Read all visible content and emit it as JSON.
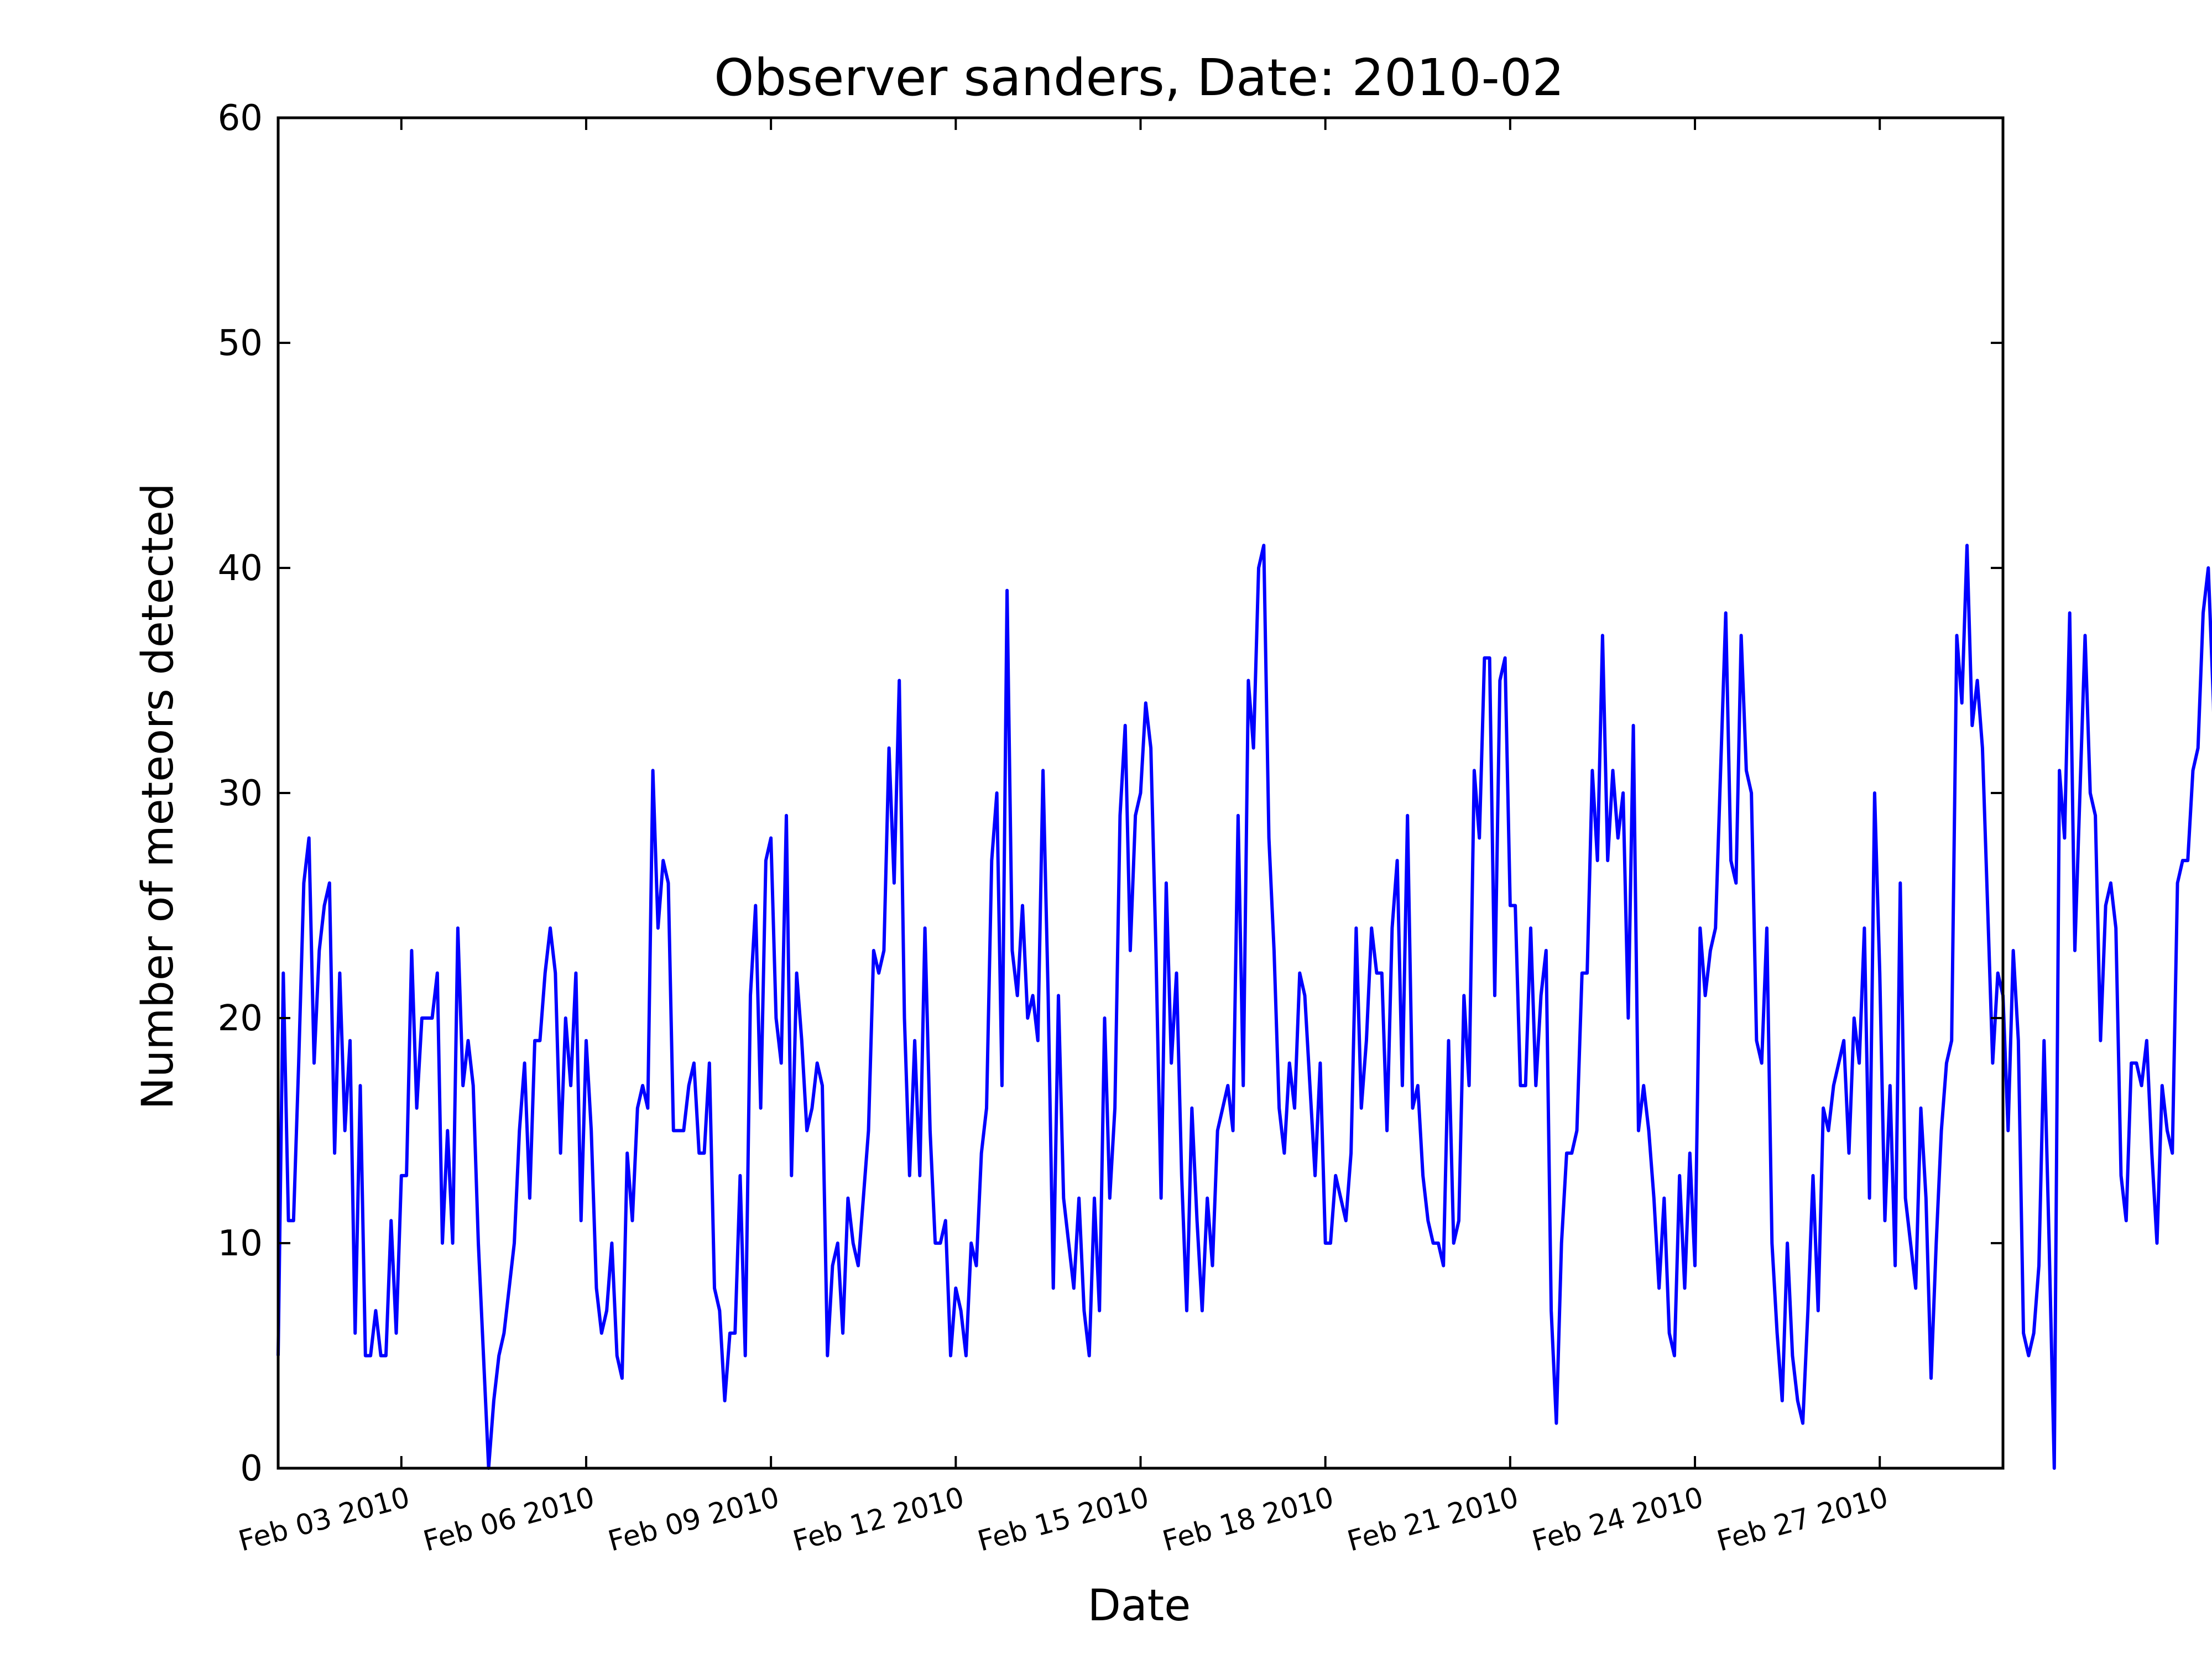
{
  "chart_data": {
    "type": "line",
    "title": "Observer sanders, Date: 2010-02",
    "xlabel": "Date",
    "ylabel": "Number of meteors detected",
    "ylim": [
      0,
      60
    ],
    "xlim": [
      "2010-02-01T00:00",
      "2010-03-01T00:00"
    ],
    "yticks": [
      0,
      10,
      20,
      30,
      40,
      50,
      60
    ],
    "xticks": [
      {
        "date": "2010-02-03",
        "label": "Feb 03 2010"
      },
      {
        "date": "2010-02-06",
        "label": "Feb 06 2010"
      },
      {
        "date": "2010-02-09",
        "label": "Feb 09 2010"
      },
      {
        "date": "2010-02-12",
        "label": "Feb 12 2010"
      },
      {
        "date": "2010-02-15",
        "label": "Feb 15 2010"
      },
      {
        "date": "2010-02-18",
        "label": "Feb 18 2010"
      },
      {
        "date": "2010-02-21",
        "label": "Feb 21 2010"
      },
      {
        "date": "2010-02-24",
        "label": "Feb 24 2010"
      },
      {
        "date": "2010-02-27",
        "label": "Feb 27 2010"
      }
    ],
    "grid": false,
    "legend": "none",
    "line_color": "#0000ff",
    "series": [
      {
        "x_start": "2010-02-01T00:00",
        "x_step_hours": 2,
        "values": [
          5,
          22,
          11,
          11,
          18,
          26,
          28,
          18,
          23,
          25,
          26,
          14,
          22,
          15,
          19,
          6,
          17,
          5,
          5,
          7,
          5,
          5,
          11,
          6,
          13,
          13,
          23,
          16,
          20,
          20,
          20,
          22,
          10,
          15,
          10,
          24,
          17,
          19,
          17,
          10,
          5,
          0,
          3,
          5,
          6,
          8,
          10,
          15,
          18,
          12,
          19,
          19,
          22,
          24,
          22,
          14,
          20,
          17,
          22,
          11,
          19,
          15,
          8,
          6,
          7,
          10,
          5,
          4,
          14,
          11,
          16,
          17,
          16,
          31,
          24,
          27,
          26,
          15,
          15,
          15,
          17,
          18,
          14,
          14,
          18,
          8,
          7,
          3,
          6,
          6,
          13,
          5,
          21,
          25,
          16,
          27,
          28,
          20,
          18,
          29,
          13,
          22,
          19,
          15,
          16,
          18,
          17,
          5,
          9,
          10,
          6,
          12,
          10,
          9,
          12,
          15,
          23,
          22,
          23,
          32,
          26,
          35,
          20,
          13,
          19,
          13,
          24,
          15,
          10,
          10,
          11,
          5,
          8,
          7,
          5,
          10,
          9,
          14,
          16,
          27,
          30,
          17,
          39,
          23,
          21,
          25,
          20,
          21,
          19,
          31,
          21,
          8,
          21,
          12,
          10,
          8,
          12,
          7,
          5,
          12,
          7,
          20,
          12,
          16,
          29,
          33,
          23,
          29,
          30,
          34,
          32,
          23,
          12,
          26,
          18,
          22,
          13,
          7,
          16,
          11,
          7,
          12,
          9,
          15,
          16,
          17,
          15,
          29,
          17,
          35,
          32,
          40,
          41,
          28,
          23,
          16,
          14,
          18,
          16,
          22,
          21,
          17,
          13,
          18,
          10,
          10,
          13,
          12,
          11,
          14,
          24,
          16,
          19,
          24,
          22,
          22,
          15,
          24,
          27,
          17,
          29,
          16,
          17,
          13,
          11,
          10,
          10,
          9,
          19,
          10,
          11,
          21,
          17,
          31,
          28,
          36,
          36,
          21,
          35,
          36,
          25,
          25,
          17,
          17,
          24,
          17,
          21,
          23,
          7,
          2,
          10,
          14,
          14,
          15,
          22,
          22,
          31,
          27,
          37,
          27,
          31,
          28,
          30,
          20,
          33,
          15,
          17,
          15,
          12,
          8,
          12,
          6,
          5,
          13,
          8,
          14,
          9,
          24,
          21,
          23,
          24,
          31,
          38,
          27,
          26,
          37,
          31,
          30,
          19,
          18,
          24,
          10,
          6,
          3,
          10,
          5,
          3,
          2,
          7,
          13,
          7,
          16,
          15,
          17,
          18,
          19,
          14,
          20,
          18,
          24,
          12,
          30,
          22,
          11,
          17,
          9,
          26,
          12,
          10,
          8,
          16,
          12,
          4,
          10,
          15,
          18,
          19,
          37,
          34,
          41,
          33,
          35,
          32,
          25,
          18,
          22,
          21,
          15,
          23,
          19,
          6,
          5,
          6,
          9,
          19,
          10,
          0,
          31,
          28,
          38,
          23,
          30,
          37,
          30,
          29,
          19,
          25,
          26,
          24,
          13,
          11,
          18,
          18,
          17,
          19,
          14,
          10,
          17,
          15,
          14,
          26,
          27,
          27,
          31,
          32,
          38,
          40,
          34,
          24,
          16,
          21,
          20,
          27,
          28,
          32,
          15,
          9,
          15,
          7,
          15,
          12,
          14,
          15,
          20,
          23,
          34,
          28,
          25,
          37,
          25,
          31,
          26,
          30,
          25,
          17,
          19,
          23,
          19,
          20,
          11,
          11,
          11,
          18,
          13,
          10,
          27,
          28,
          28,
          39,
          35,
          45,
          33,
          28,
          19,
          14,
          20,
          18,
          13,
          25,
          17,
          20,
          23,
          17,
          6,
          11,
          9,
          5,
          11,
          21,
          9,
          26,
          32,
          32,
          26,
          42,
          44,
          31,
          18,
          31,
          16,
          17,
          16,
          17,
          11,
          10,
          6,
          9,
          5,
          5,
          4,
          13,
          20,
          15,
          25,
          32,
          30,
          39,
          31,
          20,
          31,
          25,
          21,
          28,
          26,
          8,
          22,
          19,
          24,
          16,
          10,
          8,
          10,
          9,
          15,
          17,
          19,
          19,
          16,
          24,
          31,
          20,
          29,
          20,
          26,
          22,
          14,
          20,
          30,
          14,
          13,
          32,
          12,
          17,
          4,
          5,
          8,
          10,
          9,
          8,
          15,
          24,
          18,
          30,
          22,
          27,
          33,
          34,
          41,
          23,
          14,
          28,
          13,
          24,
          14,
          13,
          6,
          9,
          8,
          10,
          4,
          12,
          12,
          14,
          22,
          21,
          21,
          17,
          19,
          25,
          32,
          23,
          34,
          24,
          28,
          19,
          15,
          15,
          16,
          11,
          12,
          5,
          6,
          5,
          6,
          16,
          18,
          23,
          18,
          21,
          20,
          34,
          24,
          35,
          35,
          25,
          18,
          9,
          6,
          11,
          13,
          19,
          20,
          16,
          15,
          15,
          9,
          8,
          21,
          18,
          20,
          23,
          38,
          25,
          33,
          52,
          40,
          34,
          27,
          31,
          24,
          17,
          15,
          24,
          15,
          8,
          6,
          14,
          9,
          19,
          14,
          22,
          29,
          28,
          38,
          26,
          38,
          54,
          29,
          28,
          34,
          24,
          29,
          24,
          19,
          12,
          21,
          15,
          10,
          11,
          9,
          10,
          17,
          20,
          24,
          51,
          35,
          46,
          28,
          44,
          38,
          36,
          31,
          42,
          23,
          23,
          22,
          13,
          23
        ]
      }
    ]
  }
}
